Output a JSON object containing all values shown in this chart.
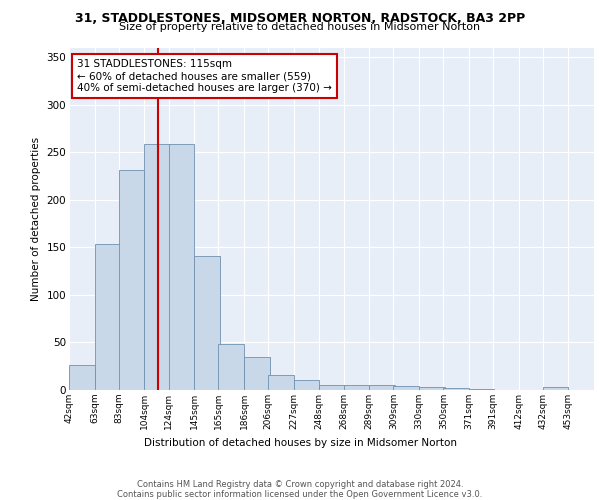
{
  "title_line1": "31, STADDLESTONES, MIDSOMER NORTON, RADSTOCK, BA3 2PP",
  "title_line2": "Size of property relative to detached houses in Midsomer Norton",
  "xlabel": "Distribution of detached houses by size in Midsomer Norton",
  "ylabel": "Number of detached properties",
  "bin_labels": [
    "42sqm",
    "63sqm",
    "83sqm",
    "104sqm",
    "124sqm",
    "145sqm",
    "165sqm",
    "186sqm",
    "206sqm",
    "227sqm",
    "248sqm",
    "268sqm",
    "289sqm",
    "309sqm",
    "330sqm",
    "350sqm",
    "371sqm",
    "391sqm",
    "412sqm",
    "432sqm",
    "453sqm"
  ],
  "bin_edges": [
    42,
    63,
    83,
    104,
    124,
    145,
    165,
    186,
    206,
    227,
    248,
    268,
    289,
    309,
    330,
    350,
    371,
    391,
    412,
    432,
    453
  ],
  "bar_heights": [
    26,
    153,
    231,
    259,
    259,
    141,
    48,
    35,
    16,
    10,
    5,
    5,
    5,
    4,
    3,
    2,
    1,
    0,
    0,
    3,
    0
  ],
  "bar_color": "#c8d8e8",
  "bar_edge_color": "#7090b0",
  "property_size": 115,
  "red_line_color": "#cc0000",
  "annotation_text": "31 STADDLESTONES: 115sqm\n← 60% of detached houses are smaller (559)\n40% of semi-detached houses are larger (370) →",
  "annotation_box_color": "white",
  "annotation_box_edge_color": "#cc0000",
  "ylim": [
    0,
    360
  ],
  "yticks": [
    0,
    50,
    100,
    150,
    200,
    250,
    300,
    350
  ],
  "background_color": "#e8eef8",
  "grid_color": "white",
  "footer_text": "Contains HM Land Registry data © Crown copyright and database right 2024.\nContains public sector information licensed under the Open Government Licence v3.0."
}
